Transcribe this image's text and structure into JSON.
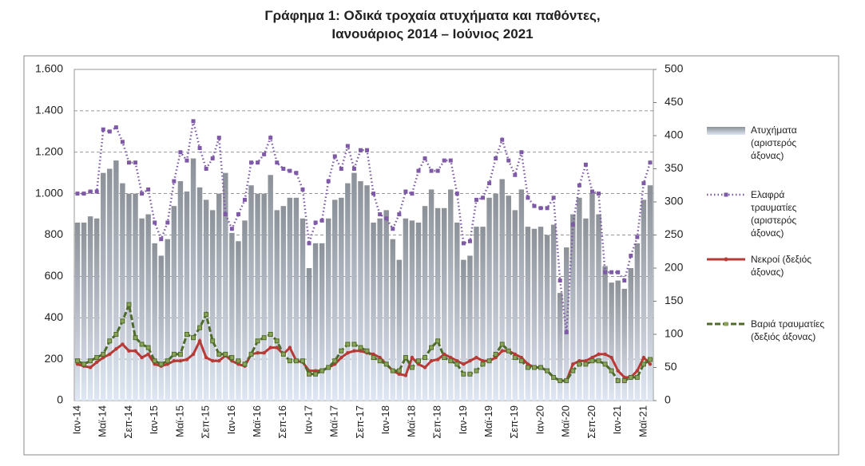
{
  "chart_data": {
    "type": "bar-line",
    "title": "Γράφημα 1: Οδικά τροχαία ατυχήματα και παθόντες,",
    "subtitle": "Ιανουάριος 2014 – Ιούνιος 2021",
    "categories": [
      "Ιαν-14",
      null,
      null,
      null,
      "Μαϊ-14",
      null,
      null,
      null,
      "Σεπ-14",
      null,
      null,
      null,
      "Ιαν-15",
      null,
      null,
      null,
      "Μαϊ-15",
      null,
      null,
      null,
      "Σεπ-15",
      null,
      null,
      null,
      "Ιαν-16",
      null,
      null,
      null,
      "Μαϊ-16",
      null,
      null,
      null,
      "Σεπ-16",
      null,
      null,
      null,
      "Ιαν-17",
      null,
      null,
      null,
      "Μαϊ-17",
      null,
      null,
      null,
      "Σεπ-17",
      null,
      null,
      null,
      "Ιαν-18",
      null,
      null,
      null,
      "Μαϊ-18",
      null,
      null,
      null,
      "Σεπ-18",
      null,
      null,
      null,
      "Ιαν-19",
      null,
      null,
      null,
      "Μαϊ-19",
      null,
      null,
      null,
      "Σεπ-19",
      null,
      null,
      null,
      "Ιαν-20",
      null,
      null,
      null,
      "Μαϊ-20",
      null,
      null,
      null,
      "Σεπ-20",
      null,
      null,
      null,
      "Ιαν-21",
      null,
      null,
      null,
      "Μαϊ-21",
      null
    ],
    "series": [
      {
        "name": "Ατυχήματα (αριστερός άξονας)",
        "type": "bar",
        "axis": "y",
        "color": "#8c9198",
        "values": [
          860,
          860,
          890,
          880,
          1100,
          1120,
          1160,
          1050,
          1000,
          1000,
          880,
          900,
          760,
          700,
          780,
          940,
          1060,
          1010,
          1170,
          1030,
          970,
          920,
          1000,
          1100,
          810,
          770,
          870,
          1040,
          1000,
          1000,
          1090,
          920,
          940,
          980,
          980,
          880,
          640,
          760,
          760,
          880,
          970,
          980,
          1050,
          1100,
          1060,
          1040,
          860,
          880,
          920,
          780,
          680,
          880,
          870,
          860,
          940,
          1020,
          930,
          930,
          1020,
          860,
          680,
          700,
          840,
          840,
          980,
          1000,
          1070,
          990,
          920,
          1020,
          840,
          830,
          840,
          800,
          850,
          520,
          740,
          900,
          980,
          880,
          1000,
          900,
          650,
          570,
          580,
          540,
          640,
          760,
          970,
          1040
        ]
      },
      {
        "name": "Ελαφρά τραυματίες (αριστερός άξονας)",
        "type": "line",
        "axis": "y",
        "color": "#7e5aa6",
        "values": [
          1000,
          1000,
          1010,
          1010,
          1310,
          1300,
          1320,
          1250,
          1150,
          1150,
          1000,
          1020,
          860,
          780,
          860,
          1060,
          1200,
          1160,
          1350,
          1220,
          1120,
          1170,
          1270,
          900,
          830,
          900,
          970,
          1150,
          1150,
          1190,
          1270,
          1150,
          1120,
          1110,
          1100,
          1020,
          760,
          860,
          870,
          1060,
          1180,
          1120,
          1230,
          1120,
          1210,
          1210,
          1000,
          900,
          880,
          830,
          900,
          1010,
          1000,
          1110,
          1170,
          1110,
          1110,
          1160,
          1160,
          1000,
          760,
          770,
          970,
          980,
          1050,
          1170,
          1260,
          1160,
          1090,
          1200,
          980,
          940,
          930,
          930,
          980,
          580,
          330,
          850,
          1040,
          1140,
          1010,
          1000,
          620,
          620,
          620,
          580,
          700,
          790,
          1050,
          1150
        ]
      },
      {
        "name": "Νεκροί (δεξιός άξονας)",
        "type": "line",
        "axis": "y2",
        "color": "#b83a36",
        "values": [
          55,
          52,
          50,
          58,
          65,
          70,
          78,
          85,
          75,
          75,
          65,
          70,
          55,
          52,
          55,
          60,
          60,
          62,
          70,
          90,
          65,
          60,
          60,
          68,
          60,
          55,
          52,
          70,
          72,
          72,
          80,
          80,
          70,
          80,
          60,
          58,
          45,
          45,
          45,
          50,
          55,
          65,
          72,
          75,
          75,
          72,
          70,
          65,
          55,
          45,
          40,
          38,
          65,
          55,
          50,
          60,
          62,
          70,
          65,
          60,
          55,
          60,
          65,
          60,
          60,
          65,
          75,
          75,
          70,
          65,
          55,
          50,
          50,
          45,
          35,
          30,
          30,
          55,
          60,
          60,
          65,
          70,
          70,
          65,
          45,
          35,
          35,
          45,
          65,
          55
        ]
      },
      {
        "name": "Βαριά τραυματίες (δεξιός άξονας)",
        "type": "line",
        "axis": "y2",
        "color": "#4e6b2a",
        "values": [
          60,
          55,
          60,
          65,
          70,
          90,
          100,
          120,
          145,
          95,
          85,
          80,
          60,
          55,
          60,
          70,
          70,
          100,
          95,
          110,
          130,
          90,
          70,
          70,
          65,
          60,
          55,
          70,
          90,
          95,
          100,
          90,
          70,
          60,
          60,
          60,
          40,
          40,
          45,
          50,
          60,
          75,
          85,
          85,
          80,
          75,
          65,
          60,
          55,
          45,
          45,
          65,
          50,
          60,
          65,
          80,
          90,
          65,
          60,
          55,
          40,
          40,
          45,
          55,
          60,
          70,
          85,
          75,
          65,
          60,
          50,
          50,
          50,
          45,
          35,
          30,
          30,
          45,
          55,
          55,
          60,
          60,
          55,
          45,
          30,
          30,
          35,
          35,
          55,
          62
        ]
      }
    ],
    "ylim": [
      0,
      1600
    ],
    "yticks": [
      0,
      200,
      400,
      600,
      800,
      {
        "value": 1000,
        "label": "1.000"
      },
      {
        "value": 1200,
        "label": "1.200"
      },
      {
        "value": 1400,
        "label": "1.400"
      },
      {
        "value": 1600,
        "label": "1.600"
      }
    ],
    "y2lim": [
      0,
      500
    ],
    "y2ticks": [
      0,
      50,
      100,
      150,
      200,
      250,
      300,
      350,
      400,
      450,
      500
    ],
    "grid": true,
    "legend": "right"
  }
}
